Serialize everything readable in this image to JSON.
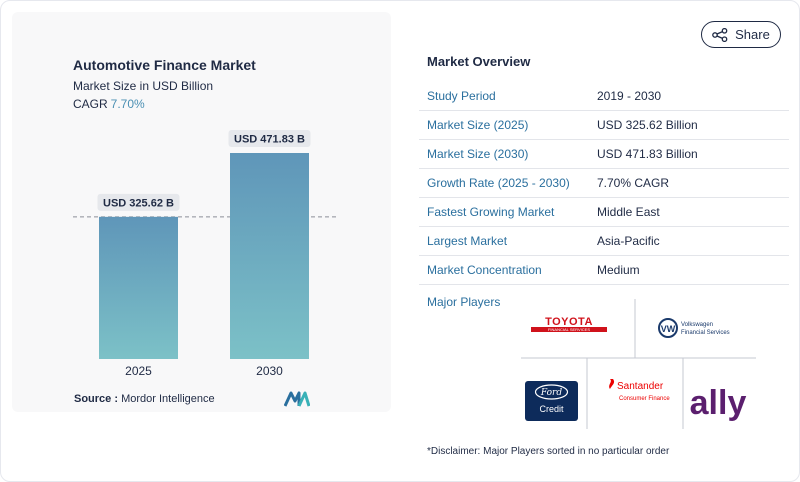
{
  "share": {
    "label": "Share",
    "icon": "share-icon"
  },
  "chart_data": {
    "type": "bar",
    "title": "Automotive Finance Market",
    "subtitle": "Market Size in USD Billion",
    "cagr_label": "CAGR",
    "cagr_value": "7.70%",
    "categories": [
      "2025",
      "2030"
    ],
    "values": [
      325.62,
      471.83
    ],
    "data_labels": [
      "USD 325.62 B",
      "USD 471.83 B"
    ],
    "xlabel": "",
    "ylabel": "",
    "ylim": [
      0,
      500
    ],
    "grid": false,
    "reference_line": "dashed line at the 2025 value",
    "colors": {
      "bar_top": "#5f96b9",
      "bar_bottom": "#7cc1c7",
      "label_bg": "#e6e8ec"
    }
  },
  "source": {
    "label": "Source :",
    "value": "Mordor Intelligence"
  },
  "overview": {
    "title": "Market Overview",
    "rows": [
      {
        "label": "Study Period",
        "value": "2019 - 2030"
      },
      {
        "label": "Market Size (2025)",
        "value": "USD 325.62 Billion"
      },
      {
        "label": "Market Size (2030)",
        "value": "USD 471.83 Billion"
      },
      {
        "label": "Growth Rate (2025 - 2030)",
        "value": "7.70% CAGR"
      },
      {
        "label": "Fastest Growing Market",
        "value": "Middle East"
      },
      {
        "label": "Largest Market",
        "value": "Asia-Pacific"
      },
      {
        "label": "Market Concentration",
        "value": "Medium"
      }
    ]
  },
  "players": {
    "label": "Major Players",
    "logos": {
      "toyota": {
        "name": "TOYOTA",
        "sub": "FINANCIAL SERVICES"
      },
      "vw": {
        "name": "Volkswagen",
        "sub": "Financial Services"
      },
      "ford": {
        "name": "Ford",
        "sub": "Credit"
      },
      "santander": {
        "name": "Santander",
        "sub": "Consumer Finance"
      },
      "ally": {
        "name": "ally"
      }
    }
  },
  "disclaimer": "*Disclaimer: Major Players sorted in no particular order"
}
